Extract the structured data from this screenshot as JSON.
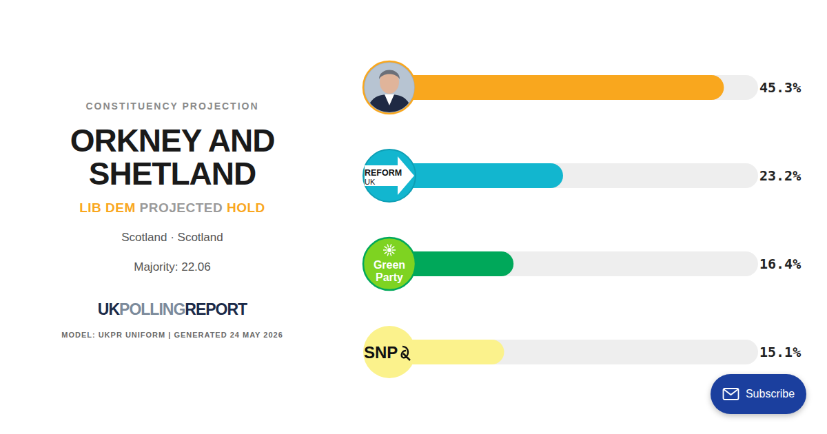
{
  "header": {
    "kicker": "CONSTITUENCY PROJECTION",
    "title": "ORKNEY AND SHETLAND",
    "party": "LIB DEM",
    "status": "PROJECTED",
    "result": "HOLD",
    "region": "Scotland · Scotland",
    "majority_label": "Majority:",
    "majority": 22.06
  },
  "branding": {
    "logo": [
      "UK",
      "POLLING",
      "REPORT"
    ],
    "footer": "MODEL: UKPR UNIFORM | GENERATED 24 MAY 2026"
  },
  "subscribe": "Subscribe",
  "chart_data": {
    "type": "bar",
    "orientation": "horizontal",
    "categories": [
      null,
      "REFORM UK",
      "Green Party",
      "SNP"
    ],
    "values": [
      45.3,
      23.2,
      16.4,
      15.1
    ],
    "value_labels": [
      "45.3%",
      "23.2%",
      "16.4%",
      "15.1%"
    ],
    "colors": [
      "#f9a71e",
      "#12b6cf",
      "#00a85a",
      "#fbf28c"
    ],
    "xlim": [
      0,
      50
    ],
    "grid": false,
    "data_labels": true,
    "tick_labels": "y"
  }
}
